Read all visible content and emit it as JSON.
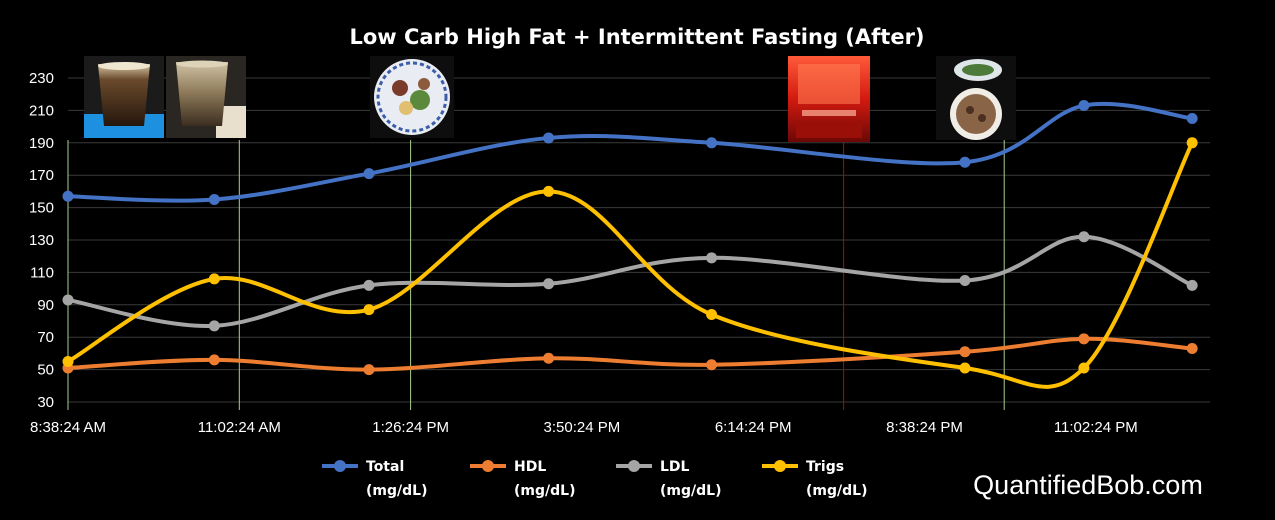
{
  "chart_data": {
    "type": "line",
    "title": "Low Carb High Fat + Intermittent Fasting (After)",
    "x_ticks": [
      "8:38:24 AM",
      "11:02:24 AM",
      "1:26:24 PM",
      "3:50:24 PM",
      "6:14:24 PM",
      "8:38:24 PM",
      "11:02:24 PM"
    ],
    "x": [
      "8:38:24 AM",
      "11:02:24 AM",
      "1:26:24 PM",
      "3:50:24 PM",
      "6:14:24 PM",
      "8:38:24 PM",
      "11:02:24 PM"
    ],
    "ylim": [
      30,
      230
    ],
    "y_ticks": [
      30,
      50,
      70,
      90,
      110,
      130,
      150,
      170,
      190,
      210,
      230
    ],
    "grid": true,
    "legend_position": "bottom",
    "series": [
      {
        "name": "Total",
        "unit": "(mg/dL)",
        "color": "#4472C4",
        "points": [
          [
            "8:38",
            157
          ],
          [
            "10:41",
            155
          ],
          [
            "12:51",
            171
          ],
          [
            "15:22",
            193
          ],
          [
            "17:39",
            190
          ],
          [
            "21:12",
            178
          ],
          [
            "22:52",
            213
          ],
          [
            "24:23",
            205
          ]
        ]
      },
      {
        "name": "HDL",
        "unit": "(mg/dL)",
        "color": "#ED7D31",
        "points": [
          [
            "8:38",
            51
          ],
          [
            "10:41",
            56
          ],
          [
            "12:51",
            50
          ],
          [
            "15:22",
            57
          ],
          [
            "17:39",
            53
          ],
          [
            "21:12",
            61
          ],
          [
            "22:52",
            69
          ],
          [
            "24:23",
            63
          ]
        ]
      },
      {
        "name": "LDL",
        "unit": "(mg/dL)",
        "color": "#A5A5A5",
        "points": [
          [
            "8:38",
            93
          ],
          [
            "10:41",
            77
          ],
          [
            "12:51",
            102
          ],
          [
            "15:22",
            103
          ],
          [
            "17:39",
            119
          ],
          [
            "21:12",
            105
          ],
          [
            "22:52",
            132
          ],
          [
            "24:23",
            102
          ]
        ]
      },
      {
        "name": "Trigs",
        "unit": "(mg/dL)",
        "color": "#FFC000",
        "points": [
          [
            "8:38",
            55
          ],
          [
            "10:41",
            106
          ],
          [
            "12:51",
            87
          ],
          [
            "15:22",
            160
          ],
          [
            "17:39",
            84
          ],
          [
            "21:12",
            51
          ],
          [
            "22:52",
            51
          ],
          [
            "24:23",
            190
          ]
        ]
      }
    ],
    "event_lines": [
      {
        "time": "8:38",
        "color": "#A9D18E",
        "icon": "coffee-glass-icon"
      },
      {
        "time": "11:02",
        "color": "#A9D18E",
        "icon": "coffee-glass-icon"
      },
      {
        "time": "13:26",
        "color": "#A9D18E",
        "icon": "meal-plate-icon"
      },
      {
        "time": "19:30",
        "color": "#C00000",
        "icon": "infrared-sauna-icon"
      },
      {
        "time": "21:45",
        "color": "#A9D18E",
        "icon": "soup-bowl-icon"
      }
    ]
  },
  "branding": {
    "text": "QuantifiedBob.com"
  }
}
